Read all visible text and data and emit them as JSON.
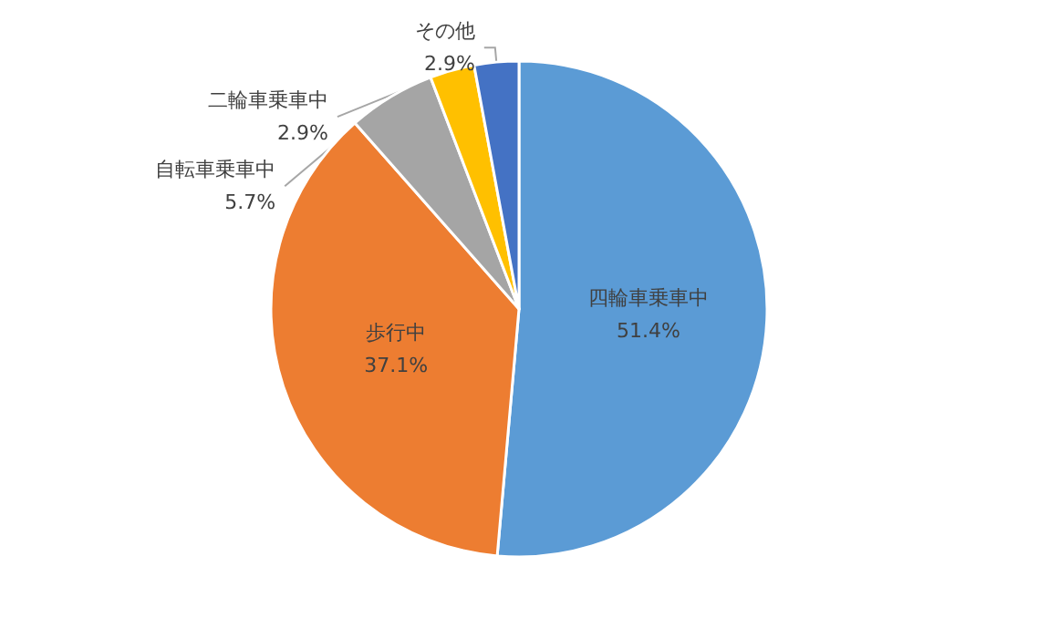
{
  "chart_data": {
    "type": "pie",
    "categories": [
      "四輪車乗車中",
      "歩行中",
      "自転車乗車中",
      "二輪車乗車中",
      "その他"
    ],
    "values": [
      51.4,
      37.1,
      5.7,
      2.9,
      2.9
    ],
    "colors": [
      "#5b9bd5",
      "#ed7d31",
      "#a5a5a5",
      "#ffc000",
      "#4472c4"
    ],
    "value_labels": [
      "51.4%",
      "37.1%",
      "5.7%",
      "2.9%",
      "2.9%"
    ],
    "legend": false
  }
}
